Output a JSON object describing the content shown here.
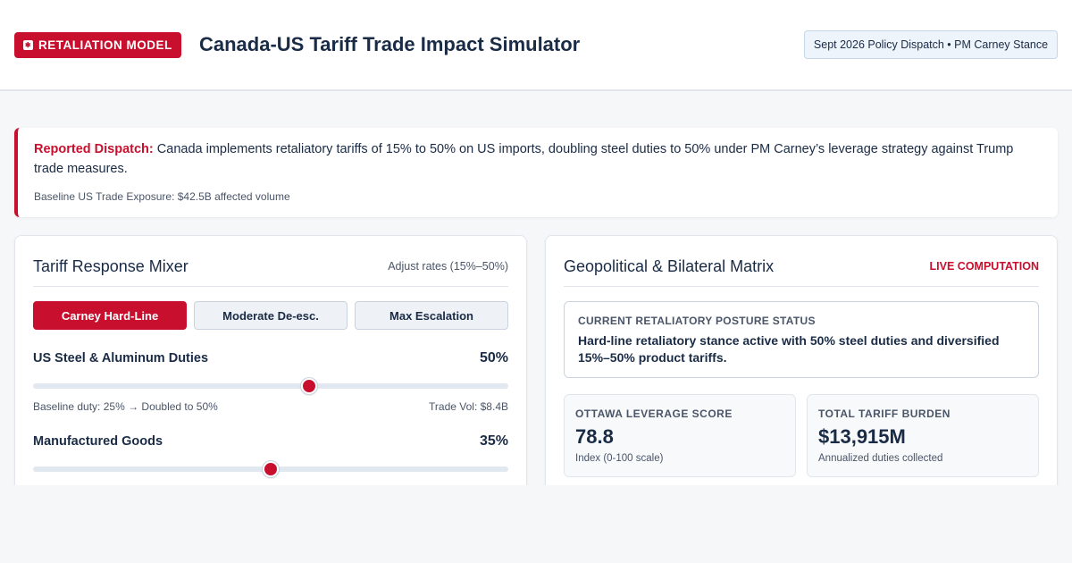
{
  "header": {
    "badge_label": "RETALIATION MODEL",
    "flag_icon": "canada-flag-icon",
    "title": "Canada-US Tariff Trade Impact Simulator",
    "dispatch_tag": "Sept 2026 Policy Dispatch • PM Carney Stance"
  },
  "alert": {
    "lead": "Reported Dispatch:",
    "text": " Canada implements retaliatory tariffs of 15% to 50% on US imports, doubling steel duties to 50% under PM Carney’s leverage strategy against Trump trade measures.",
    "baseline": "Baseline US Trade Exposure: $42.5B affected volume"
  },
  "mixer": {
    "title": "Tariff Response Mixer",
    "range_note": "Adjust rates (15%–50%)",
    "presets": [
      {
        "label": "Carney Hard-Line",
        "active": true
      },
      {
        "label": "Moderate De-esc.",
        "active": false
      },
      {
        "label": "Max Escalation",
        "active": false
      }
    ],
    "sliders": [
      {
        "label": "US Steel & Aluminum Duties",
        "value_label": "50%",
        "level": 0.58,
        "note": "Baseline duty: 25% → Doubled to 50%",
        "volume": "Trade Vol: $8.4B"
      },
      {
        "label": "Manufactured Goods",
        "value_label": "35%",
        "level": 0.5,
        "note": "",
        "volume": ""
      }
    ]
  },
  "matrix": {
    "title": "Geopolitical & Bilateral Matrix",
    "live_label": "LIVE COMPUTATION",
    "posture": {
      "heading": "CURRENT RETALIATORY POSTURE STATUS",
      "body": "Hard-line retaliatory stance active with 50% steel duties and diversified 15%–50% product tariffs."
    },
    "stats": [
      {
        "heading": "OTTAWA LEVERAGE SCORE",
        "value": "78.8",
        "caption": "Index (0-100 scale)"
      },
      {
        "heading": "TOTAL TARIFF BURDEN",
        "value": "$13,915M",
        "caption": "Annualized duties collected"
      }
    ]
  },
  "colors": {
    "accent": "#c8102e",
    "ink": "#1a2b45",
    "muted": "#4a5568",
    "track": "#e2e8f0"
  }
}
